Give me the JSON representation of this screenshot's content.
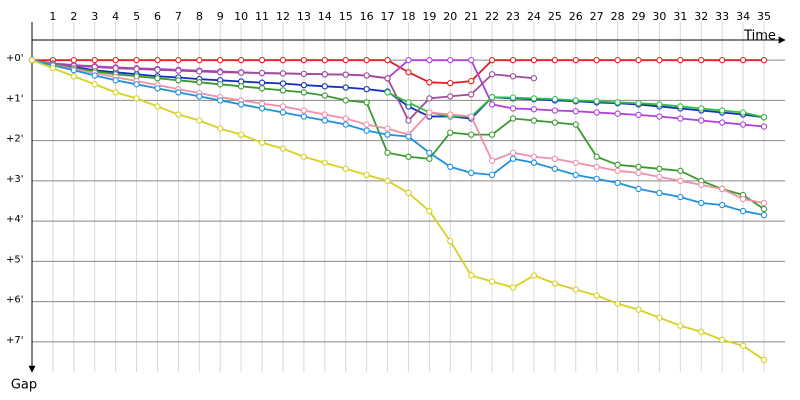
{
  "chart_data": {
    "type": "line",
    "x_label": "Time",
    "y_label": "Gap",
    "x": [
      0,
      1,
      2,
      3,
      4,
      5,
      6,
      7,
      8,
      9,
      10,
      11,
      12,
      13,
      14,
      15,
      16,
      17,
      18,
      19,
      20,
      21,
      22,
      23,
      24,
      25,
      26,
      27,
      28,
      29,
      30,
      31,
      32,
      33,
      34,
      35
    ],
    "xlim": [
      0,
      35
    ],
    "xticks": [
      1,
      2,
      3,
      4,
      5,
      6,
      7,
      8,
      9,
      10,
      11,
      12,
      13,
      14,
      15,
      16,
      17,
      18,
      19,
      20,
      21,
      22,
      23,
      24,
      25,
      26,
      27,
      28,
      29,
      30,
      31,
      32,
      33,
      34,
      35
    ],
    "ylim": [
      -0.75,
      7.75
    ],
    "y_reversed": true,
    "grid": true,
    "yticks": [
      {
        "value": 0,
        "label": "+0'"
      },
      {
        "value": 1,
        "label": "+1'"
      },
      {
        "value": 2,
        "label": "+2'"
      },
      {
        "value": 3,
        "label": "+3'"
      },
      {
        "value": 4,
        "label": "+4'"
      },
      {
        "value": 5,
        "label": "+5'"
      },
      {
        "value": 6,
        "label": "+6'"
      },
      {
        "value": 7,
        "label": "+7'"
      }
    ],
    "series": [
      {
        "color": "#e02020",
        "values": [
          0,
          0,
          0,
          0,
          0,
          0,
          0,
          0,
          0,
          0,
          0,
          0,
          0,
          0,
          0,
          0,
          0,
          0,
          0.3,
          0.55,
          0.57,
          0.52,
          0,
          0,
          0,
          0,
          0,
          0,
          0,
          0,
          0,
          0,
          0,
          0,
          0,
          0
        ]
      },
      {
        "color": "#1030c0",
        "values": [
          0,
          0.1,
          0.17,
          0.25,
          0.3,
          0.35,
          0.4,
          0.43,
          0.47,
          0.5,
          0.53,
          0.56,
          0.58,
          0.62,
          0.65,
          0.68,
          0.72,
          0.78,
          1.15,
          1.4,
          1.4,
          1.45,
          0.92,
          0.95,
          0.97,
          1.0,
          1.02,
          1.05,
          1.07,
          1.1,
          1.15,
          1.2,
          1.25,
          1.3,
          1.35,
          1.42
        ]
      },
      {
        "color": "#b040e0",
        "values": [
          0,
          0.08,
          0.12,
          0.15,
          0.18,
          0.2,
          0.22,
          0.24,
          0.26,
          0.28,
          0.3,
          0.32,
          0.33,
          0.34,
          0.35,
          0.36,
          0.38,
          0.45,
          0,
          0,
          0,
          0,
          1.1,
          1.2,
          1.22,
          1.25,
          1.27,
          1.3,
          1.33,
          1.36,
          1.4,
          1.45,
          1.5,
          1.55,
          1.6,
          1.65
        ]
      },
      {
        "color": "#a04a9a",
        "values": [
          0,
          0.1,
          0.14,
          0.17,
          0.2,
          0.22,
          0.24,
          0.26,
          0.28,
          0.3,
          0.31,
          0.32,
          0.33,
          0.34,
          0.35,
          0.36,
          0.38,
          0.45,
          1.5,
          0.95,
          0.9,
          0.85,
          0.35,
          0.4,
          0.45,
          null,
          null,
          null,
          null,
          null,
          null,
          null,
          null,
          null,
          null,
          null
        ]
      },
      {
        "color": "#3a9a30",
        "values": [
          0,
          0.1,
          0.2,
          0.28,
          0.35,
          0.4,
          0.45,
          0.5,
          0.55,
          0.6,
          0.65,
          0.7,
          0.75,
          0.8,
          0.88,
          1.0,
          1.05,
          2.3,
          2.4,
          2.45,
          1.8,
          1.85,
          1.85,
          1.45,
          1.5,
          1.55,
          1.6,
          2.4,
          2.6,
          2.65,
          2.7,
          2.75,
          3.0,
          3.2,
          3.35,
          3.7
        ]
      },
      {
        "color": "#30c040",
        "values": [
          null,
          null,
          null,
          null,
          null,
          null,
          null,
          null,
          null,
          null,
          null,
          null,
          null,
          null,
          null,
          null,
          null,
          0.8,
          1.05,
          1.3,
          1.4,
          1.4,
          0.92,
          0.93,
          0.95,
          0.97,
          1.0,
          1.02,
          1.05,
          1.07,
          1.1,
          1.15,
          1.2,
          1.25,
          1.3,
          1.42
        ]
      },
      {
        "color": "#f090a8",
        "values": [
          0,
          0.12,
          0.22,
          0.32,
          0.42,
          0.52,
          0.62,
          0.72,
          0.82,
          0.92,
          1.0,
          1.08,
          1.15,
          1.25,
          1.35,
          1.45,
          1.6,
          1.7,
          1.85,
          1.3,
          1.35,
          1.4,
          2.5,
          2.3,
          2.4,
          2.45,
          2.55,
          2.65,
          2.75,
          2.8,
          2.9,
          3.0,
          3.1,
          3.2,
          3.45,
          3.55
        ]
      },
      {
        "color": "#2090e0",
        "values": [
          0,
          0.13,
          0.25,
          0.38,
          0.5,
          0.6,
          0.7,
          0.8,
          0.9,
          1.0,
          1.1,
          1.2,
          1.3,
          1.4,
          1.5,
          1.6,
          1.75,
          1.85,
          1.9,
          2.3,
          2.65,
          2.8,
          2.85,
          2.45,
          2.55,
          2.7,
          2.85,
          2.95,
          3.05,
          3.2,
          3.3,
          3.4,
          3.55,
          3.6,
          3.75,
          3.85
        ]
      },
      {
        "color": "#d8d020",
        "values": [
          0,
          0.2,
          0.4,
          0.6,
          0.8,
          0.95,
          1.15,
          1.35,
          1.5,
          1.7,
          1.85,
          2.05,
          2.2,
          2.4,
          2.55,
          2.7,
          2.85,
          3.0,
          3.3,
          3.75,
          4.5,
          5.35,
          5.5,
          5.65,
          5.35,
          5.55,
          5.7,
          5.85,
          6.05,
          6.2,
          6.4,
          6.6,
          6.75,
          6.95,
          7.1,
          7.45
        ]
      }
    ]
  }
}
